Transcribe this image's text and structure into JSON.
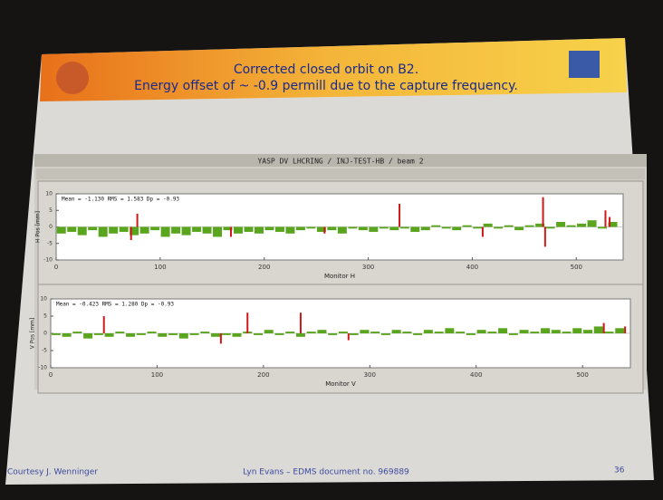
{
  "slide": {
    "title_lines": [
      "Corrected closed orbit on B2.",
      "Energy offset of ~ -0.9 permill due to the capture frequency."
    ],
    "panel_title": "YASP DV LHCRING / INJ-TEST-HB / beam 2",
    "footer_left": "Courtesy J. Wenninger",
    "footer_center": "Lyn Evans – EDMS document no. 969889",
    "page_number": "36"
  },
  "chart_data": [
    {
      "type": "bar",
      "annotation": "Mean = -1.130   RMS = 1.583   Dp = -0.93",
      "ylabel": "H Pos [mm]",
      "xlabel": "Monitor H",
      "xlim": [
        0,
        545
      ],
      "xticks": [
        0,
        100,
        200,
        300,
        400,
        500
      ],
      "ylim": [
        -10,
        10
      ],
      "yticks": [
        -10,
        -5,
        0,
        5,
        10
      ],
      "series": [
        {
          "color": "#5aa51e",
          "x": [
            5,
            15,
            25,
            35,
            45,
            55,
            65,
            75,
            85,
            95,
            105,
            115,
            125,
            135,
            145,
            155,
            165,
            175,
            185,
            195,
            205,
            215,
            225,
            235,
            245,
            255,
            265,
            275,
            285,
            295,
            305,
            315,
            325,
            335,
            345,
            355,
            365,
            375,
            385,
            395,
            405,
            415,
            425,
            435,
            445,
            455,
            465,
            475,
            485,
            495,
            505,
            515,
            525,
            535
          ],
          "values": [
            -2,
            -1.5,
            -2.5,
            -1,
            -3,
            -2,
            -1.5,
            -2.5,
            -2,
            -1,
            -3,
            -2,
            -2.5,
            -1.5,
            -2,
            -3,
            -1,
            -2,
            -1.5,
            -2,
            -1,
            -1.5,
            -2,
            -1,
            -0.5,
            -1.5,
            -1,
            -2,
            -0.5,
            -1,
            -1.5,
            -0.5,
            -1,
            -0.5,
            -1.5,
            -1,
            0.5,
            -0.5,
            -1,
            0.5,
            -0.5,
            1,
            -0.5,
            0.5,
            -1,
            0.5,
            1,
            -0.5,
            1.5,
            0.5,
            1,
            2,
            -0.5,
            1.5
          ]
        },
        {
          "color": "#d01818",
          "x": [
            72,
            78,
            168,
            258,
            330,
            410,
            468,
            470,
            528,
            532
          ],
          "values": [
            -4,
            4,
            -3,
            -2,
            7,
            -3,
            9,
            -6,
            5,
            3
          ]
        }
      ]
    },
    {
      "type": "bar",
      "annotation": "Mean = -0.423   RMS = 1.280   Dp = -0.93",
      "ylabel": "V Pos [mm]",
      "xlabel": "Monitor V",
      "xlim": [
        0,
        545
      ],
      "xticks": [
        0,
        100,
        200,
        300,
        400,
        500
      ],
      "ylim": [
        -10,
        10
      ],
      "yticks": [
        -10,
        -5,
        0,
        5,
        10
      ],
      "series": [
        {
          "color": "#5aa51e",
          "x": [
            5,
            15,
            25,
            35,
            45,
            55,
            65,
            75,
            85,
            95,
            105,
            115,
            125,
            135,
            145,
            155,
            165,
            175,
            185,
            195,
            205,
            215,
            225,
            235,
            245,
            255,
            265,
            275,
            285,
            295,
            305,
            315,
            325,
            335,
            345,
            355,
            365,
            375,
            385,
            395,
            405,
            415,
            425,
            435,
            445,
            455,
            465,
            475,
            485,
            495,
            505,
            515,
            525,
            535
          ],
          "values": [
            -0.5,
            -1,
            0.5,
            -1.5,
            -0.5,
            -1,
            0.5,
            -1,
            -0.5,
            0.5,
            -1,
            -0.5,
            -1.5,
            -0.5,
            0.5,
            -1,
            -0.5,
            -1,
            0.5,
            -0.5,
            1,
            -0.5,
            0.5,
            -1,
            0.5,
            1,
            -0.5,
            0.5,
            -0.5,
            1,
            0.5,
            -0.5,
            1,
            0.5,
            -0.5,
            1,
            0.5,
            1.5,
            0.5,
            -0.5,
            1,
            0.5,
            1.5,
            -0.5,
            1,
            0.5,
            1.5,
            1,
            0.5,
            1.5,
            1,
            2,
            0.5,
            1.5
          ]
        },
        {
          "color": "#d01818",
          "x": [
            50,
            160,
            185,
            235,
            280,
            520,
            540
          ],
          "values": [
            5,
            -3,
            6,
            6,
            -2,
            3,
            2
          ]
        }
      ]
    }
  ]
}
